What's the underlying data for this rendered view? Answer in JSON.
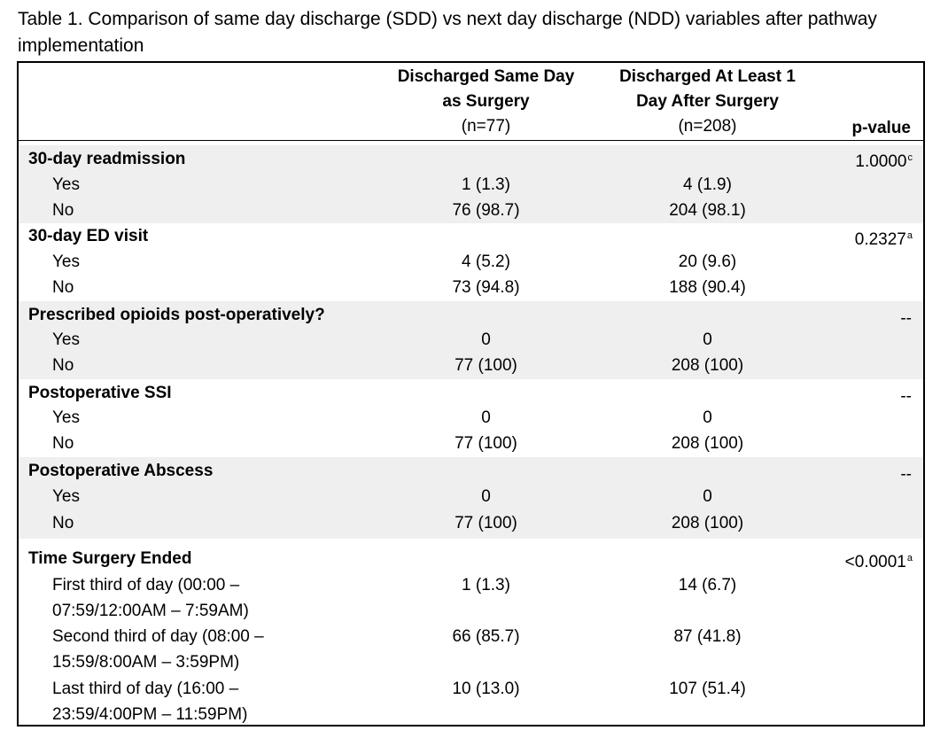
{
  "caption": "Table 1. Comparison of same day discharge (SDD) vs next day discharge (NDD) variables after pathway implementation",
  "header": {
    "col1_line1": "Discharged Same Day",
    "col1_line2": "as Surgery",
    "col1_n": "(n=77)",
    "col2_line1": "Discharged At Least 1",
    "col2_line2": "Day After Surgery",
    "col2_n": "(n=208)",
    "col3": "p-value"
  },
  "sections": [
    {
      "label": "30-day readmission",
      "p_value": "1.0000",
      "p_sup": "c",
      "rows": [
        {
          "label": "Yes",
          "sdd": "1 (1.3)",
          "ndd": "4 (1.9)"
        },
        {
          "label": "No",
          "sdd": "76 (98.7)",
          "ndd": "204 (98.1)"
        }
      ]
    },
    {
      "label": "30-day ED visit",
      "p_value": "0.2327",
      "p_sup": "a",
      "rows": [
        {
          "label": "Yes",
          "sdd": "4 (5.2)",
          "ndd": "20 (9.6)"
        },
        {
          "label": "No",
          "sdd": "73 (94.8)",
          "ndd": "188 (90.4)"
        }
      ]
    },
    {
      "label": "Prescribed opioids post-operatively?",
      "p_value": "--",
      "p_sup": "",
      "rows": [
        {
          "label": "Yes",
          "sdd": "0",
          "ndd": "0"
        },
        {
          "label": "No",
          "sdd": "77 (100)",
          "ndd": "208 (100)"
        }
      ]
    },
    {
      "label": "Postoperative SSI",
      "p_value": "--",
      "p_sup": "",
      "rows": [
        {
          "label": "Yes",
          "sdd": "0",
          "ndd": "0"
        },
        {
          "label": "No",
          "sdd": "77 (100)",
          "ndd": "208 (100)"
        }
      ]
    },
    {
      "label": "Postoperative Abscess",
      "p_value": "--",
      "p_sup": "",
      "rows": [
        {
          "label": "Yes",
          "sdd": "0",
          "ndd": "0"
        },
        {
          "label": "No",
          "sdd": "77 (100)",
          "ndd": "208 (100)"
        }
      ]
    },
    {
      "label": "Time Surgery Ended",
      "p_value": "<0.0001",
      "p_sup": "a",
      "rows": [
        {
          "label_line1": "First third of day (00:00 –",
          "label_line2": "07:59/12:00AM – 7:59AM)",
          "sdd": "1 (1.3)",
          "ndd": "14 (6.7)"
        },
        {
          "label_line1": "Second third of day (08:00 –",
          "label_line2": "15:59/8:00AM – 3:59PM)",
          "sdd": "66 (85.7)",
          "ndd": "87 (41.8)"
        },
        {
          "label_line1": "Last third of day (16:00 –",
          "label_line2": "23:59/4:00PM – 11:59PM)",
          "sdd": "10 (13.0)",
          "ndd": "107 (51.4)"
        }
      ]
    }
  ]
}
